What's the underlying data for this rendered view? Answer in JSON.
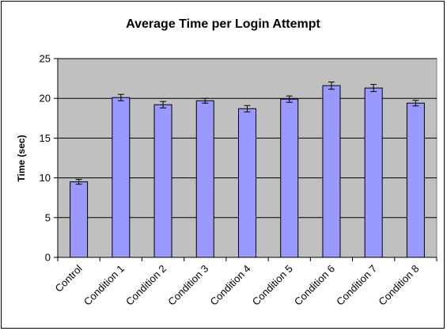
{
  "chart_data": {
    "type": "bar",
    "title": "Average Time per Login Attempt",
    "xlabel": "",
    "ylabel": "Time (sec)",
    "ylim": [
      0,
      25
    ],
    "yticks": [
      0,
      5,
      10,
      15,
      20,
      25
    ],
    "grid": true,
    "legend": "none",
    "categories": [
      "Control",
      "Condition 1",
      "Condition 2",
      "Condition 3",
      "Condition 4",
      "Condition 5",
      "Condition 6",
      "Condition 7",
      "Condition 8"
    ],
    "values": [
      9.5,
      20.1,
      19.2,
      19.7,
      18.7,
      19.9,
      21.6,
      21.3,
      19.4
    ],
    "error": [
      0.3,
      0.4,
      0.4,
      0.3,
      0.4,
      0.4,
      0.45,
      0.45,
      0.35
    ],
    "colors": {
      "bar_fill": "#9999ff",
      "bar_stroke": "#000000",
      "plot_background": "#c0c0c0",
      "gridline": "#000000"
    }
  }
}
